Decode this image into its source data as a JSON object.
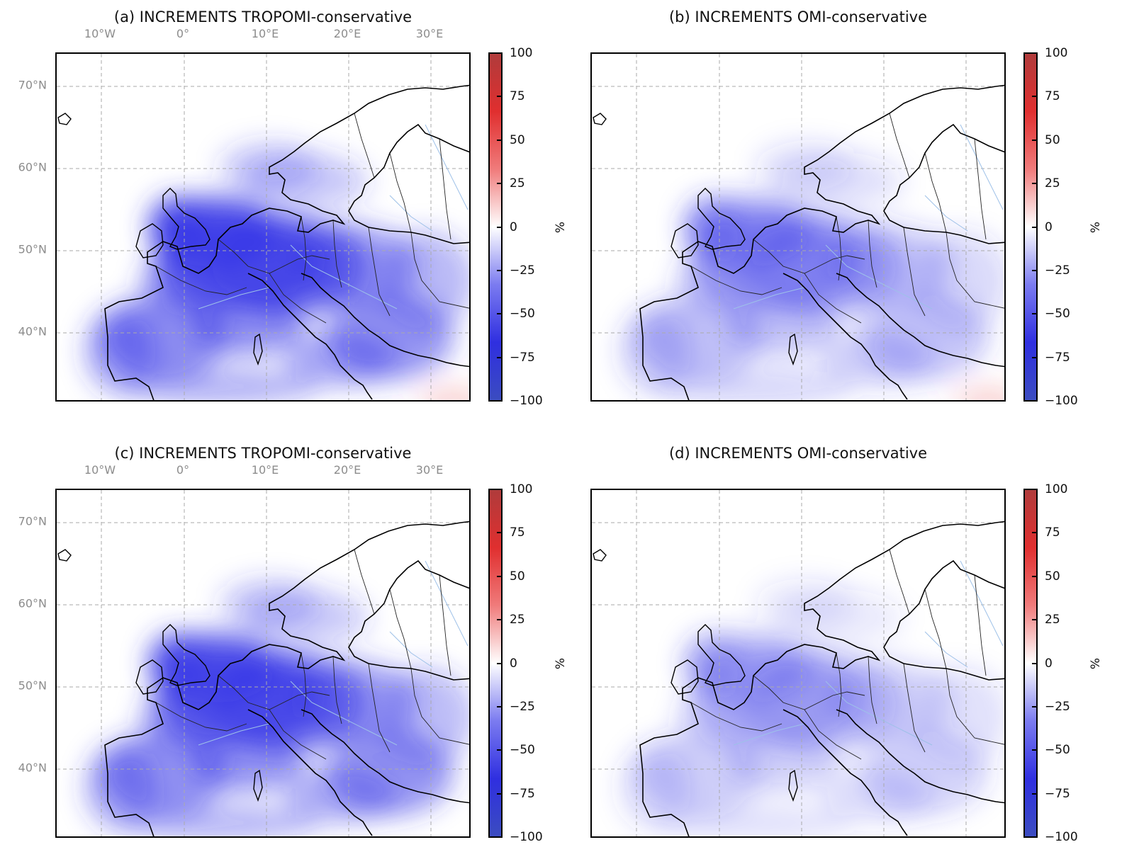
{
  "panels": [
    {
      "id": "a",
      "title": "(a) INCREMENTS TROPOMI-conservative",
      "show_lon_labels": true,
      "show_lat_labels": true,
      "intensity": 1.0,
      "red_corner": true
    },
    {
      "id": "b",
      "title": "(b) INCREMENTS OMI-conservative",
      "show_lon_labels": false,
      "show_lat_labels": false,
      "intensity": 0.55,
      "red_corner": true
    },
    {
      "id": "c",
      "title": "(c) INCREMENTS TROPOMI-conservative",
      "show_lon_labels": true,
      "show_lat_labels": true,
      "intensity": 0.95,
      "red_corner": false
    },
    {
      "id": "d",
      "title": "(d) INCREMENTS OMI-conservative",
      "show_lon_labels": false,
      "show_lat_labels": false,
      "intensity": 0.4,
      "red_corner": false
    }
  ],
  "lon_labels": [
    "10°W",
    "0°",
    "10°E",
    "20°E",
    "30°E"
  ],
  "lat_labels": [
    "70°N",
    "60°N",
    "50°N",
    "40°N"
  ],
  "colorbar": {
    "ticks": [
      "100",
      "75",
      "50",
      "25",
      "0",
      "−25",
      "−50",
      "−75",
      "−100"
    ],
    "unit": "%",
    "range": [
      -100,
      100
    ],
    "colormap": [
      "#3b4cc0",
      "#2f2fe0",
      "#7b7bf0",
      "#ffffff",
      "#f07b7b",
      "#e02f2f",
      "#b03b3b"
    ]
  },
  "chart_data": {
    "type": "heatmap",
    "variable": "INCREMENTS",
    "unit": "%",
    "range": [
      -100,
      100
    ],
    "panels": [
      "(a) INCREMENTS TROPOMI-conservative",
      "(b) INCREMENTS OMI-conservative",
      "(c) INCREMENTS TROPOMI-conservative",
      "(d) INCREMENTS OMI-conservative"
    ],
    "lon_ticks": [
      "10°W",
      "0°",
      "10°E",
      "20°E",
      "30°E"
    ],
    "lat_ticks": [
      "70°N",
      "60°N",
      "50°N",
      "40°N"
    ]
  }
}
